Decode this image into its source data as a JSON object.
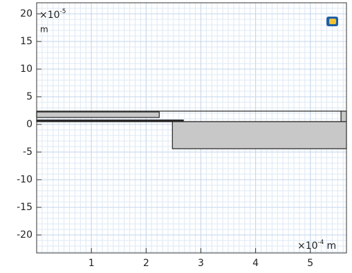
{
  "chart_data": {
    "type": "geometry",
    "xlim": [
      0,
      5.66
    ],
    "ylim": [
      -23.25,
      22
    ],
    "xticks": [
      1,
      2,
      3,
      4,
      5
    ],
    "yticks": [
      -20,
      -15,
      -10,
      -5,
      0,
      5,
      10,
      15,
      20
    ],
    "y_multiplier": "×10",
    "y_exponent": "-5",
    "y_unit": "m",
    "x_multiplier": "×10",
    "x_exponent": "-4",
    "x_unit": "m",
    "grid": true,
    "shapes": [
      {
        "x": [
          0,
          2.24
        ],
        "y": [
          1.25,
          2.25
        ],
        "fill": "#c8c8c8"
      },
      {
        "x": [
          0,
          5.56
        ],
        "y": [
          0.5,
          2.4
        ],
        "fill": "none"
      },
      {
        "x": [
          5.56,
          5.66
        ],
        "y": [
          0.5,
          2.4
        ],
        "fill": "#c8c8c8"
      },
      {
        "x": [
          0,
          2.68
        ],
        "y": [
          0.5,
          0.8
        ],
        "fill": "#333333"
      },
      {
        "x": [
          2.48,
          5.66
        ],
        "y": [
          -4.4,
          0.5
        ],
        "fill": "#c8c8c8"
      }
    ]
  }
}
